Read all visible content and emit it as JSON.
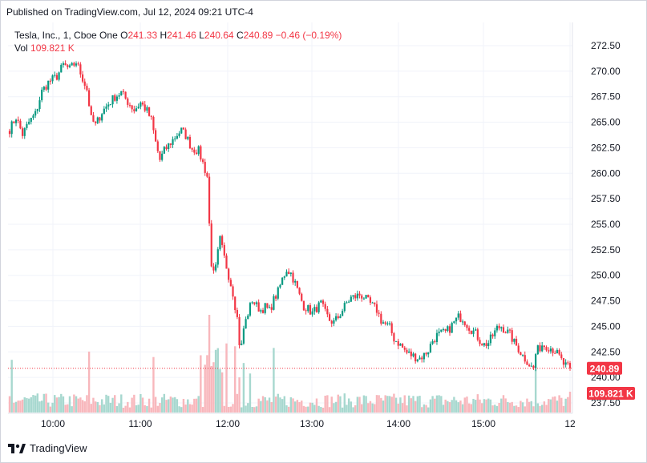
{
  "header": {
    "published": "Published on TradingView.com, Jul 12, 2024 09:21 UTC-4"
  },
  "legend": {
    "symbol": "Tesla, Inc., 1, Cboe One",
    "o_label": "O",
    "o": "241.33",
    "h_label": "H",
    "h": "241.46",
    "l_label": "L",
    "l": "240.64",
    "c_label": "C",
    "c": "240.89",
    "change": "−0.46 (−0.19%)",
    "vol_label": "Vol",
    "vol": "109.821 K"
  },
  "footer": {
    "brand": "TradingView",
    "logo_icon": "tradingview-logo-icon"
  },
  "colors": {
    "up": "#089981",
    "down": "#f23645",
    "grid": "#f0f3fa",
    "axis_text": "#131722",
    "up_vol": "#a7d8cf",
    "down_vol": "#f8b7bc"
  },
  "chart_data": {
    "type": "candlestick",
    "y_ticks": [
      "272.50",
      "270.00",
      "267.50",
      "265.00",
      "262.50",
      "260.00",
      "257.50",
      "255.00",
      "252.50",
      "250.00",
      "247.50",
      "245.00",
      "242.50",
      "240.00",
      "237.50"
    ],
    "x_ticks": [
      "10:00",
      "11:00",
      "12:00",
      "13:00",
      "14:00",
      "15:00",
      "12"
    ],
    "ylim": [
      237,
      274
    ],
    "last_price": "240.89",
    "last_price_value": 240.89,
    "last_volume": "109.821 K",
    "anchors": [
      [
        0,
        264.3
      ],
      [
        3,
        265.5
      ],
      [
        6,
        263.8
      ],
      [
        9,
        265.0
      ],
      [
        12,
        265.8
      ],
      [
        15,
        268.0
      ],
      [
        18,
        268.9
      ],
      [
        22,
        269.5
      ],
      [
        25,
        270.6
      ],
      [
        28,
        270.2
      ],
      [
        31,
        270.9
      ],
      [
        34,
        269.3
      ],
      [
        36,
        268.2
      ],
      [
        38,
        265.3
      ],
      [
        40,
        264.7
      ],
      [
        43,
        266.0
      ],
      [
        46,
        266.8
      ],
      [
        49,
        267.5
      ],
      [
        52,
        267.9
      ],
      [
        55,
        267.0
      ],
      [
        58,
        266.2
      ],
      [
        61,
        266.9
      ],
      [
        64,
        266.1
      ],
      [
        66,
        265.2
      ],
      [
        68,
        263.0
      ],
      [
        70,
        261.3
      ],
      [
        72,
        262.2
      ],
      [
        75,
        263.0
      ],
      [
        78,
        263.8
      ],
      [
        80,
        264.2
      ],
      [
        82,
        263.7
      ],
      [
        85,
        262.4
      ],
      [
        88,
        262.2
      ],
      [
        90,
        261.0
      ],
      [
        92,
        259.7
      ],
      [
        93,
        255.0
      ],
      [
        94,
        251.2
      ],
      [
        95,
        250.1
      ],
      [
        96,
        250.7
      ],
      [
        97,
        252.2
      ],
      [
        98,
        253.5
      ],
      [
        100,
        251.7
      ],
      [
        102,
        250.0
      ],
      [
        104,
        248.3
      ],
      [
        106,
        245.8
      ],
      [
        107,
        243.4
      ],
      [
        108,
        243.1
      ],
      [
        109,
        244.8
      ],
      [
        111,
        246.3
      ],
      [
        113,
        247.6
      ],
      [
        115,
        247.0
      ],
      [
        117,
        246.6
      ],
      [
        119,
        246.9
      ],
      [
        121,
        246.5
      ],
      [
        123,
        247.6
      ],
      [
        125,
        248.4
      ],
      [
        127,
        249.6
      ],
      [
        129,
        250.6
      ],
      [
        131,
        250.2
      ],
      [
        133,
        249.2
      ],
      [
        135,
        248.0
      ],
      [
        137,
        247.0
      ],
      [
        139,
        246.7
      ],
      [
        141,
        246.3
      ],
      [
        143,
        246.8
      ],
      [
        145,
        247.2
      ],
      [
        147,
        246.3
      ],
      [
        149,
        245.6
      ],
      [
        151,
        245.4
      ],
      [
        153,
        245.9
      ],
      [
        155,
        246.6
      ],
      [
        157,
        247.3
      ],
      [
        159,
        247.8
      ],
      [
        161,
        247.9
      ],
      [
        163,
        248.1
      ],
      [
        165,
        247.9
      ],
      [
        167,
        247.4
      ],
      [
        169,
        247.0
      ],
      [
        171,
        246.6
      ],
      [
        173,
        245.6
      ],
      [
        175,
        245.2
      ],
      [
        177,
        244.9
      ],
      [
        179,
        243.8
      ],
      [
        181,
        243.4
      ],
      [
        183,
        242.9
      ],
      [
        185,
        242.4
      ],
      [
        187,
        242.2
      ],
      [
        189,
        242.0
      ],
      [
        191,
        241.9
      ],
      [
        193,
        242.2
      ],
      [
        195,
        242.7
      ],
      [
        197,
        243.6
      ],
      [
        199,
        244.1
      ],
      [
        201,
        244.3
      ],
      [
        203,
        244.4
      ],
      [
        205,
        244.8
      ],
      [
        207,
        245.4
      ],
      [
        209,
        245.9
      ],
      [
        211,
        245.8
      ],
      [
        213,
        245.2
      ],
      [
        215,
        244.7
      ],
      [
        217,
        244.3
      ],
      [
        219,
        243.6
      ],
      [
        221,
        243.2
      ],
      [
        223,
        243.4
      ],
      [
        225,
        244.1
      ],
      [
        227,
        244.8
      ],
      [
        229,
        245.0
      ],
      [
        231,
        244.6
      ],
      [
        233,
        244.2
      ],
      [
        235,
        243.4
      ],
      [
        237,
        242.8
      ],
      [
        239,
        242.1
      ],
      [
        241,
        241.6
      ],
      [
        243,
        241.0
      ],
      [
        244,
        240.9
      ],
      [
        245,
        242.3
      ],
      [
        246,
        242.7
      ],
      [
        248,
        243.2
      ],
      [
        250,
        243.1
      ],
      [
        252,
        242.9
      ],
      [
        254,
        242.6
      ],
      [
        256,
        242.0
      ],
      [
        258,
        241.3
      ],
      [
        260,
        241.0
      ],
      [
        261,
        240.89
      ]
    ],
    "n_bars": 262
  }
}
